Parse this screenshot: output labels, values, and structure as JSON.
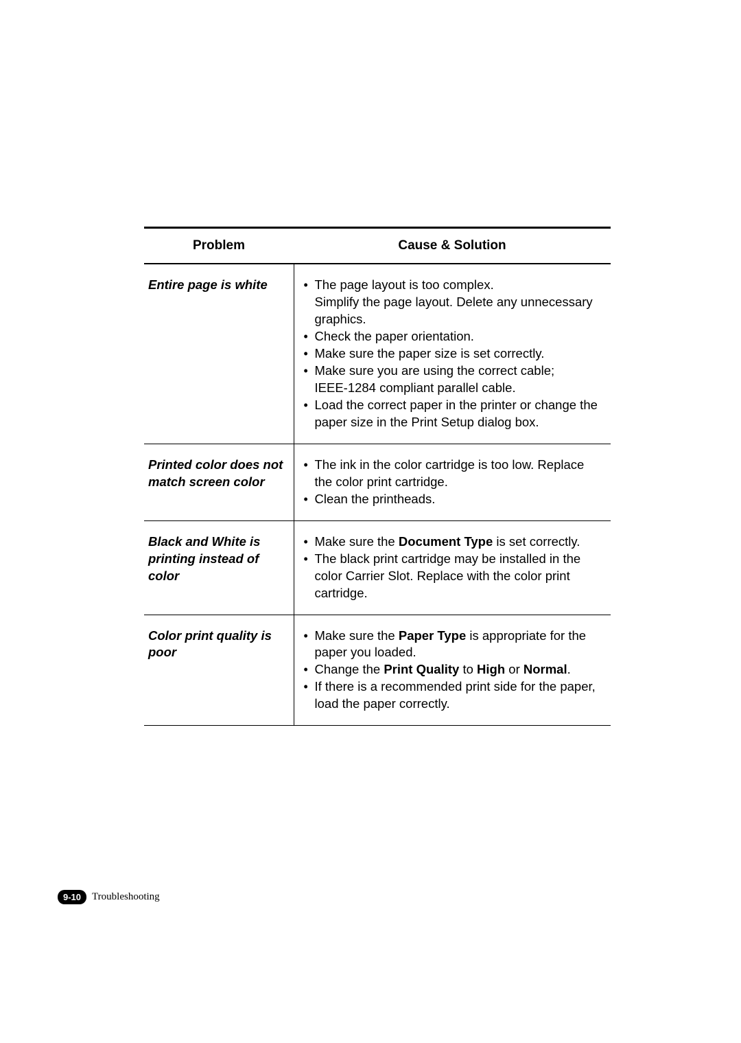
{
  "table": {
    "headers": {
      "problem": "Problem",
      "solution": "Cause & Solution"
    },
    "rows": [
      {
        "problem": "Entire page is white",
        "items": [
          {
            "text": "The page layout is too complex.",
            "sub": "Simplify the page layout. Delete any unnecessary graphics."
          },
          {
            "text": "Check the paper orientation."
          },
          {
            "text": "Make sure the paper size is set correctly."
          },
          {
            "text": "Make sure you are using the correct cable;",
            "sub": "IEEE-1284 compliant parallel cable."
          },
          {
            "text": "Load the correct paper in the printer or change the paper size in the Print Setup dialog box."
          }
        ]
      },
      {
        "problem": "Printed color does not match screen color",
        "items": [
          {
            "text": "The ink in the color cartridge is too low. Replace the color print cartridge."
          },
          {
            "text": "Clean the printheads."
          }
        ]
      },
      {
        "problem": "Black and White is printing instead of color",
        "items": [
          {
            "parts": [
              {
                "t": "Make sure the "
              },
              {
                "t": "Document Type",
                "b": true
              },
              {
                "t": " is set correctly."
              }
            ]
          },
          {
            "text": "The black print cartridge may be installed in the color Carrier Slot. Replace with the color print cartridge."
          }
        ]
      },
      {
        "problem": "Color print quality is poor",
        "items": [
          {
            "parts": [
              {
                "t": "Make sure the "
              },
              {
                "t": "Paper Type",
                "b": true
              },
              {
                "t": " is appropriate for the paper you loaded."
              }
            ]
          },
          {
            "parts": [
              {
                "t": "Change the "
              },
              {
                "t": "Print Quality",
                "b": true
              },
              {
                "t": " to "
              },
              {
                "t": "High",
                "b": true
              },
              {
                "t": " or "
              },
              {
                "t": "Normal",
                "b": true
              },
              {
                "t": "."
              }
            ]
          },
          {
            "text": "If there is a recommended print side for the paper, load the paper correctly."
          }
        ]
      }
    ]
  },
  "footer": {
    "page": "9-10",
    "section": "Troubleshooting"
  },
  "colors": {
    "text": "#000000",
    "bg": "#ffffff"
  }
}
